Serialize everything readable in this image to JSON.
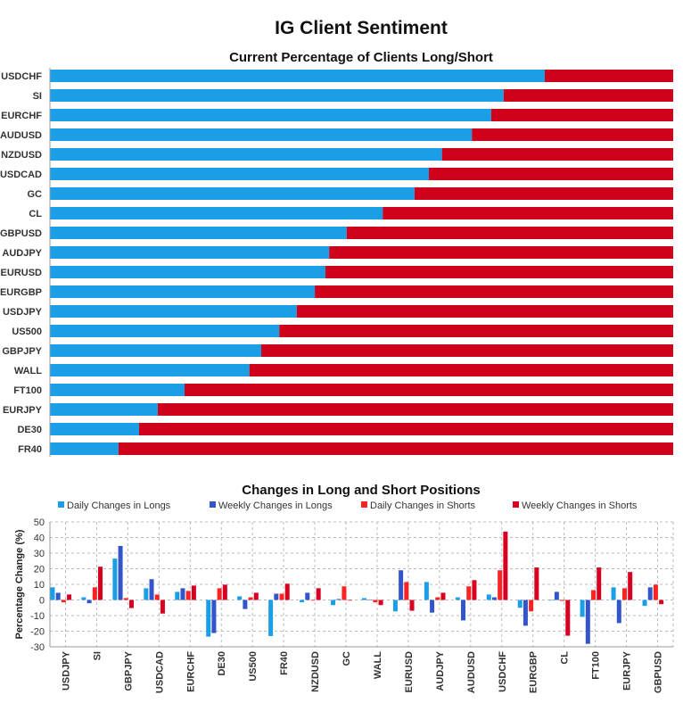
{
  "title": "IG Client Sentiment",
  "colors": {
    "long": "#1a9fe6",
    "short": "#d0021b",
    "daily_longs": "#1a9fe6",
    "weekly_longs": "#3355cc",
    "daily_shorts": "#ff2222",
    "weekly_shorts": "#d80020"
  },
  "chart_data": [
    {
      "type": "bar",
      "orientation": "horizontal-stacked",
      "title": "Current Percentage of Clients Long/Short",
      "categories": [
        "USDCHF",
        "SI",
        "EURCHF",
        "AUDUSD",
        "NZDUSD",
        "USDCAD",
        "GC",
        "CL",
        "GBPUSD",
        "AUDJPY",
        "EURUSD",
        "EURGBP",
        "USDJPY",
        "US500",
        "GBPJPY",
        "WALL",
        "FT100",
        "EURJPY",
        "DE30",
        "FR40"
      ],
      "series": [
        {
          "values": [
            79.4,
            72.8,
            70.8,
            67.7,
            62.9,
            60.8,
            58.5,
            53.4,
            47.6,
            44.8,
            44.2,
            42.5,
            39.6,
            36.8,
            33.9,
            32.0,
            21.6,
            17.3,
            14.3,
            11.0
          ]
        },
        {
          "values": [
            20.6,
            27.2,
            29.2,
            32.3,
            37.1,
            39.2,
            41.5,
            46.6,
            52.4,
            55.2,
            55.8,
            57.5,
            60.4,
            63.2,
            66.1,
            68.0,
            78.4,
            82.7,
            85.7,
            89.0
          ]
        }
      ],
      "xlim": [
        0,
        100
      ]
    },
    {
      "type": "bar",
      "title": "Changes in Long and Short Positions",
      "ylabel": "Percentage Change (%)",
      "ylim": [
        -30,
        50
      ],
      "yticks": [
        50,
        40,
        30,
        20,
        10,
        0,
        -10,
        -20,
        -30
      ],
      "grid": true,
      "legend": "top",
      "categories": [
        "USDJPY",
        "SI",
        "GBPJPY",
        "USDCAD",
        "EURCHF",
        "DE30",
        "US500",
        "FR40",
        "NZDUSD",
        "GC",
        "WALL",
        "EURUSD",
        "AUDJPY",
        "AUDUSD",
        "USDCHF",
        "EURGBP",
        "CL",
        "FT100",
        "EURJPY",
        "GBPUSD"
      ],
      "series": [
        {
          "name": "Daily Changes in Longs",
          "values": [
            8.1,
            1.7,
            26.5,
            7.5,
            5.2,
            -23.5,
            2.3,
            -23.1,
            -1.5,
            -3.3,
            1.2,
            -7.3,
            11.5,
            1.7,
            3.5,
            -5.0,
            -0.4,
            -10.8,
            8.1,
            -3.8
          ]
        },
        {
          "name": "Weekly Changes in Longs",
          "values": [
            4.6,
            -2.1,
            34.6,
            13.3,
            7.5,
            -21.2,
            -5.8,
            4.0,
            4.6,
            0.6,
            0.0,
            19.0,
            -8.1,
            -13.1,
            1.7,
            -16.5,
            5.2,
            -28.1,
            -14.8,
            8.1
          ]
        },
        {
          "name": "Daily Changes in Shorts",
          "values": [
            -1.5,
            8.1,
            1.2,
            3.5,
            5.8,
            7.5,
            1.7,
            4.0,
            -0.4,
            8.7,
            -1.5,
            11.5,
            1.7,
            8.7,
            19.0,
            -7.3,
            -0.6,
            6.3,
            7.5,
            9.8
          ]
        },
        {
          "name": "Weekly Changes in Shorts",
          "values": [
            3.5,
            21.3,
            -5.2,
            -8.7,
            9.2,
            9.8,
            4.6,
            10.4,
            7.5,
            -0.4,
            -3.3,
            -6.9,
            4.6,
            12.7,
            43.8,
            20.8,
            -22.9,
            20.8,
            17.9,
            -2.7
          ]
        }
      ]
    }
  ]
}
